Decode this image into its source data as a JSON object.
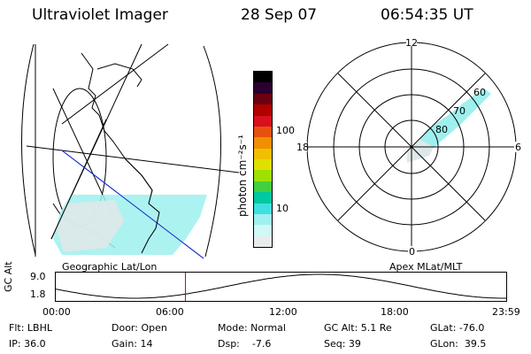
{
  "header": {
    "instrument": "Ultraviolet Imager",
    "date": "28 Sep 07",
    "time": "06:54:35 UT"
  },
  "colorbar": {
    "unit_label": "photon cm⁻²s⁻¹",
    "ticks": [
      "100",
      "10"
    ],
    "colors": [
      "#000000",
      "#2a0030",
      "#6a0010",
      "#b00000",
      "#d81020",
      "#e85010",
      "#f09000",
      "#f0c000",
      "#e0e000",
      "#a0e000",
      "#40d040",
      "#00c8a0",
      "#40e0e0",
      "#a0f0f0",
      "#d0f8f8",
      "#e8ecec"
    ]
  },
  "left_panel": {
    "label": "Geographic Lat/Lon"
  },
  "right_panel": {
    "label": "Apex MLat/MLT",
    "mlt_labels": {
      "top": "12",
      "left": "18",
      "right": "6",
      "bottom": "0"
    },
    "lat_labels": [
      "60",
      "70",
      "80"
    ]
  },
  "timeline": {
    "axis_label": "GC Alt",
    "y_ticks": [
      "9.0",
      "1.8"
    ],
    "x_ticks": [
      "00:00",
      "06:00",
      "12:00",
      "18:00",
      "23:59"
    ],
    "current_time_hours": 6.91
  },
  "footer": {
    "flt": "Flt: LBHL",
    "ip": "IP: 36.0",
    "door": "Door: Open",
    "gain": "Gain: 14",
    "mode": "Mode: Normal",
    "dsp": "Dsp:    -7.6",
    "gcalt": "GC Alt: 5.1 Re",
    "seq": "Seq: 39",
    "glat": "GLat: -76.0",
    "glon": "GLon:  39.5"
  }
}
